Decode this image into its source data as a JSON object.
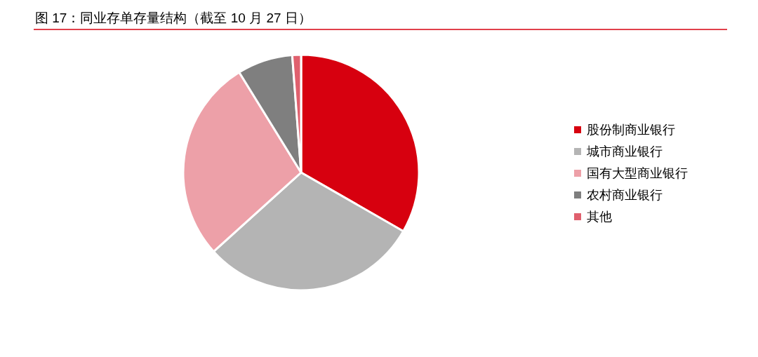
{
  "chart_data": {
    "type": "pie",
    "title": "图 17：同业存单存量结构（截至 10 月 27 日）",
    "categories": [
      "股份制商业银行",
      "城市商业银行",
      "国有大型商业银行",
      "农村商业银行",
      "其他"
    ],
    "values": [
      33.3,
      30.0,
      27.9,
      7.6,
      1.2
    ],
    "colors": [
      "#d7000f",
      "#b4b4b4",
      "#eda0a8",
      "#7f7f7f",
      "#e0606e"
    ],
    "legend": "right"
  }
}
